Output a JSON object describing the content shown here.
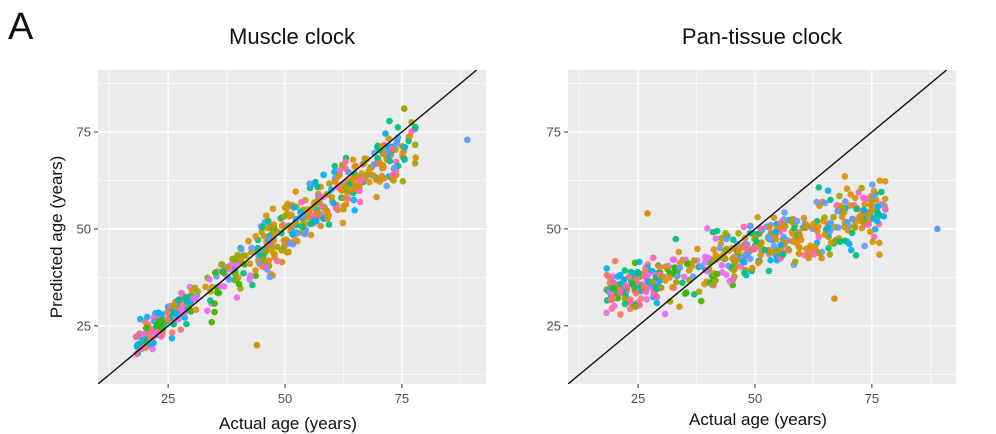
{
  "figure": {
    "panel_label": "A"
  },
  "colors": {
    "panel_bg": "#EBEBEB",
    "grid": "#FFFFFF",
    "palette": [
      "#F8766D",
      "#D8900C",
      "#A3A500",
      "#39B600",
      "#00BF7D",
      "#00B0F6",
      "#619CFF",
      "#E76BF3",
      "#FF62BC"
    ]
  },
  "chart_data": [
    {
      "type": "scatter",
      "title": "Muscle clock",
      "xlabel": "Actual age (years)",
      "ylabel": "Predicted age (years)",
      "xlim": [
        10,
        93
      ],
      "ylim": [
        10,
        91
      ],
      "xticks": [
        25,
        50,
        75
      ],
      "yticks": [
        25,
        50,
        75
      ],
      "reference_line": "identity (y = x)",
      "grid": true,
      "legend": "none",
      "points_model": {
        "slope": 0.9,
        "intercept": 4
      },
      "outliers": [
        [
          89,
          73
        ],
        [
          44,
          20
        ]
      ]
    },
    {
      "type": "scatter",
      "title": "Pan-tissue clock",
      "xlabel": "Actual age (years)",
      "ylabel": "",
      "xlim": [
        10,
        93
      ],
      "ylim": [
        10,
        91
      ],
      "xticks": [
        25,
        50,
        75
      ],
      "yticks": [
        25,
        50,
        75
      ],
      "reference_line": "identity (y = x)",
      "grid": true,
      "legend": "none",
      "points_model": {
        "slope": 0.38,
        "intercept": 26
      },
      "outliers": [
        [
          89,
          50
        ],
        [
          27,
          54
        ],
        [
          67,
          32
        ]
      ]
    }
  ]
}
